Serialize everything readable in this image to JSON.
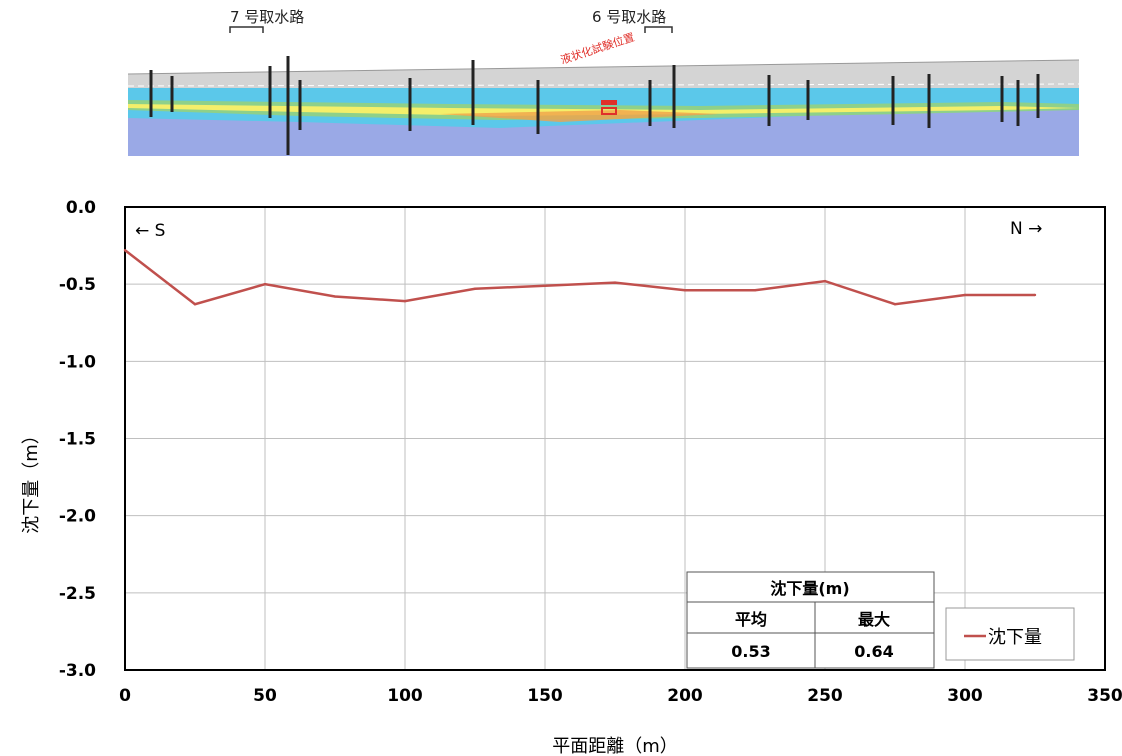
{
  "cross_section": {
    "label_7": "7 号取水路",
    "label_6": "6 号取水路",
    "test_label": "液状化試験位置"
  },
  "chart_data": {
    "type": "line",
    "title": "",
    "xlabel": "平面距離（m）",
    "ylabel": "沈下量（m）",
    "xlim": [
      0,
      350
    ],
    "ylim": [
      -3.0,
      0.0
    ],
    "x_ticks": [
      "0",
      "50",
      "100",
      "150",
      "200",
      "250",
      "300",
      "350"
    ],
    "y_ticks": [
      "0.0",
      "-0.5",
      "-1.0",
      "-1.5",
      "-2.0",
      "-2.5",
      "-3.0"
    ],
    "grid": true,
    "direction_left": "← S",
    "direction_right": "N →",
    "series": [
      {
        "name": "沈下量",
        "color": "#c0504d",
        "x": [
          0,
          25,
          50,
          75,
          100,
          125,
          150,
          175,
          200,
          225,
          250,
          275,
          300,
          325
        ],
        "y": [
          -0.28,
          -0.63,
          -0.5,
          -0.58,
          -0.61,
          -0.53,
          -0.51,
          -0.49,
          -0.54,
          -0.54,
          -0.48,
          -0.63,
          -0.57,
          -0.57
        ]
      }
    ],
    "legend_position": "bottom-right",
    "summary_table": {
      "title": "沈下量(m)",
      "headers": [
        "平均",
        "最大"
      ],
      "values": [
        "0.53",
        "0.64"
      ]
    }
  }
}
